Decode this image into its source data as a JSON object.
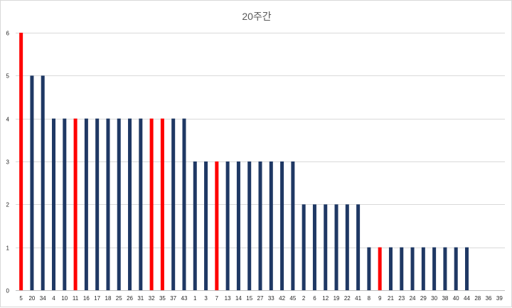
{
  "chart_data": {
    "type": "bar",
    "title": "20주간",
    "xlabel": "",
    "ylabel": "",
    "ylim": [
      0,
      6
    ],
    "yticks": [
      0,
      1,
      2,
      3,
      4,
      5,
      6
    ],
    "grid": true,
    "categories": [
      "5",
      "20",
      "34",
      "4",
      "10",
      "11",
      "16",
      "17",
      "18",
      "25",
      "26",
      "31",
      "32",
      "35",
      "37",
      "43",
      "1",
      "3",
      "7",
      "13",
      "14",
      "15",
      "27",
      "33",
      "42",
      "45",
      "2",
      "6",
      "12",
      "19",
      "22",
      "41",
      "8",
      "9",
      "21",
      "23",
      "24",
      "29",
      "30",
      "38",
      "40",
      "44",
      "28",
      "36",
      "39"
    ],
    "values": [
      6,
      5,
      5,
      4,
      4,
      4,
      4,
      4,
      4,
      4,
      4,
      4,
      4,
      4,
      4,
      4,
      3,
      3,
      3,
      3,
      3,
      3,
      3,
      3,
      3,
      3,
      2,
      2,
      2,
      2,
      2,
      2,
      1,
      1,
      1,
      1,
      1,
      1,
      1,
      1,
      1,
      1,
      0,
      0,
      0
    ],
    "highlighted": [
      "5",
      "11",
      "32",
      "35",
      "7",
      "9"
    ],
    "colors": {
      "default": "#1f3864",
      "highlight": "#ff0000"
    }
  }
}
